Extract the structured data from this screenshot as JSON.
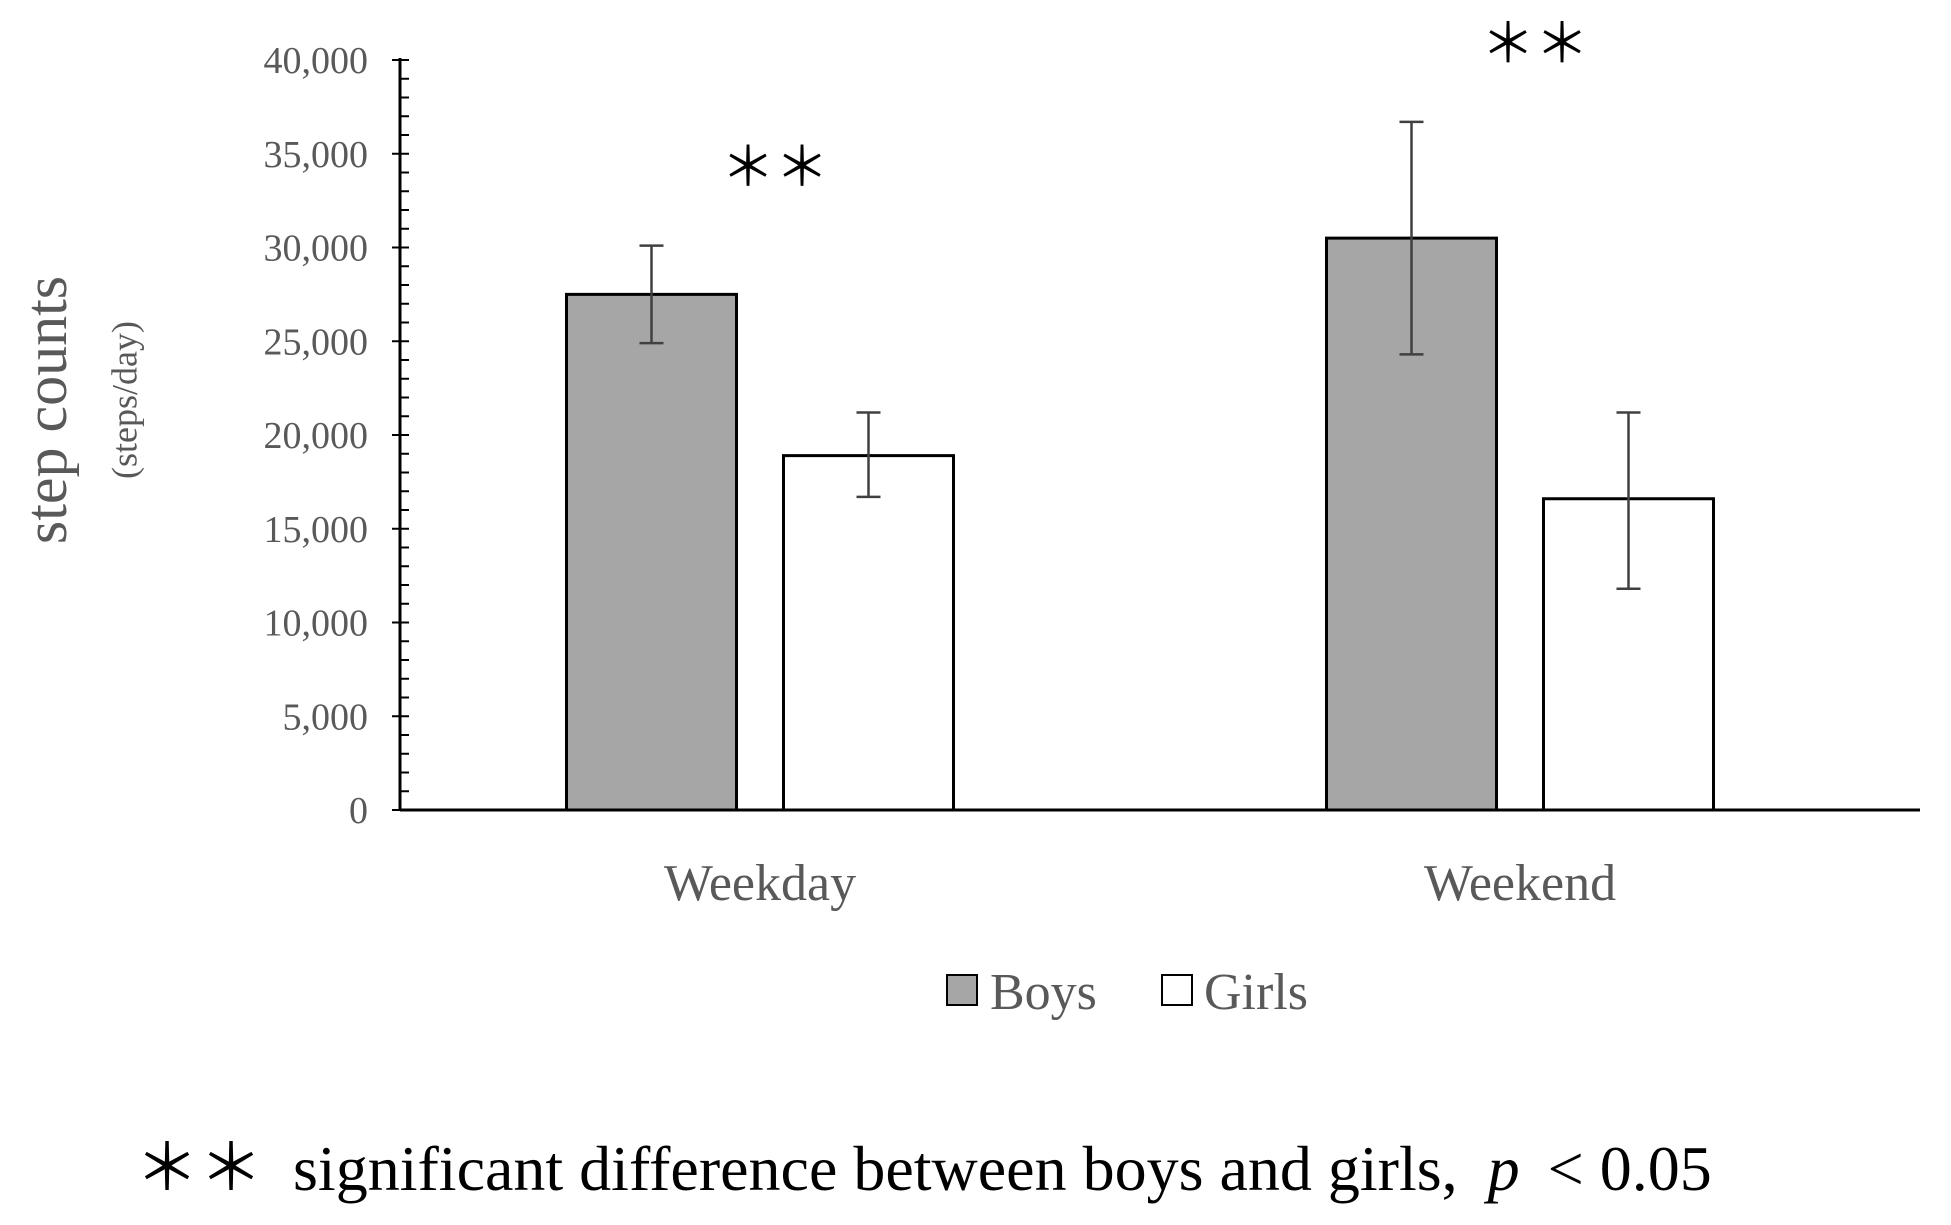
{
  "chart_data": {
    "type": "bar",
    "categories": [
      "Weekday",
      "Weekend"
    ],
    "series": [
      {
        "name": "Boys",
        "values": [
          27500,
          30500
        ],
        "error_low": [
          24900,
          24300
        ],
        "error_high": [
          30100,
          36700
        ],
        "color": "#a6a6a6"
      },
      {
        "name": "Girls",
        "values": [
          18900,
          16600
        ],
        "error_low": [
          16700,
          11800
        ],
        "error_high": [
          21200,
          21200
        ],
        "color": "#ffffff"
      }
    ],
    "ylim": [
      0,
      40000
    ],
    "yticks": [
      0,
      5000,
      10000,
      15000,
      20000,
      25000,
      30000,
      35000,
      40000
    ],
    "ytick_labels": [
      "0",
      "5,000",
      "10,000",
      "15,000",
      "20,000",
      "25,000",
      "30,000",
      "35,000",
      "40,000"
    ],
    "ylabel": "step counts",
    "ylabel_unit": "(steps/day)",
    "xlabel": "",
    "legend": [
      "Boys",
      "Girls"
    ],
    "legend_position": "bottom",
    "significance_marks": [
      "＊＊",
      "＊＊"
    ],
    "footnote": {
      "marks": "＊＊",
      "text": "significant difference between boys and girls,",
      "p_symbol": "p",
      "p_rest": "< 0.05"
    },
    "grid": false
  },
  "colors": {
    "axis": "#000000",
    "text": "#595959",
    "boys": "#a6a6a6",
    "girls": "#ffffff"
  }
}
